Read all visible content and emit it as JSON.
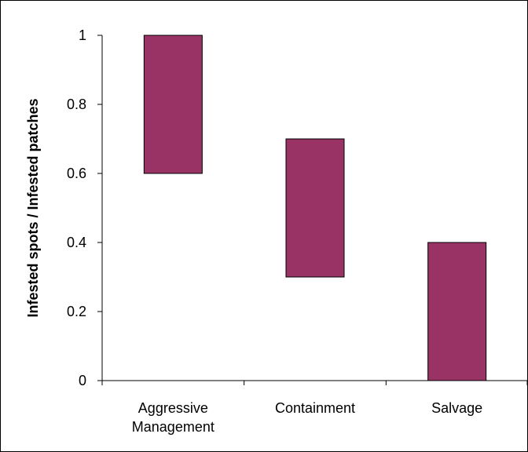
{
  "chart_data": {
    "type": "bar",
    "subtype": "floating-range",
    "title": "",
    "xlabel": "",
    "ylabel": "Infested spots / Infested patches",
    "ylim": [
      0,
      1
    ],
    "yticks": [
      "0",
      "0.2",
      "0.4",
      "0.6",
      "0.8",
      "1"
    ],
    "categories": [
      [
        "Aggressive",
        "Management"
      ],
      [
        "Containment"
      ],
      [
        "Salvage"
      ]
    ],
    "ranges": [
      {
        "low": 0.6,
        "high": 1.0
      },
      {
        "low": 0.3,
        "high": 0.7
      },
      {
        "low": 0.0,
        "high": 0.4
      }
    ],
    "bar_color": "#993366",
    "grid": false,
    "legend": "none"
  }
}
